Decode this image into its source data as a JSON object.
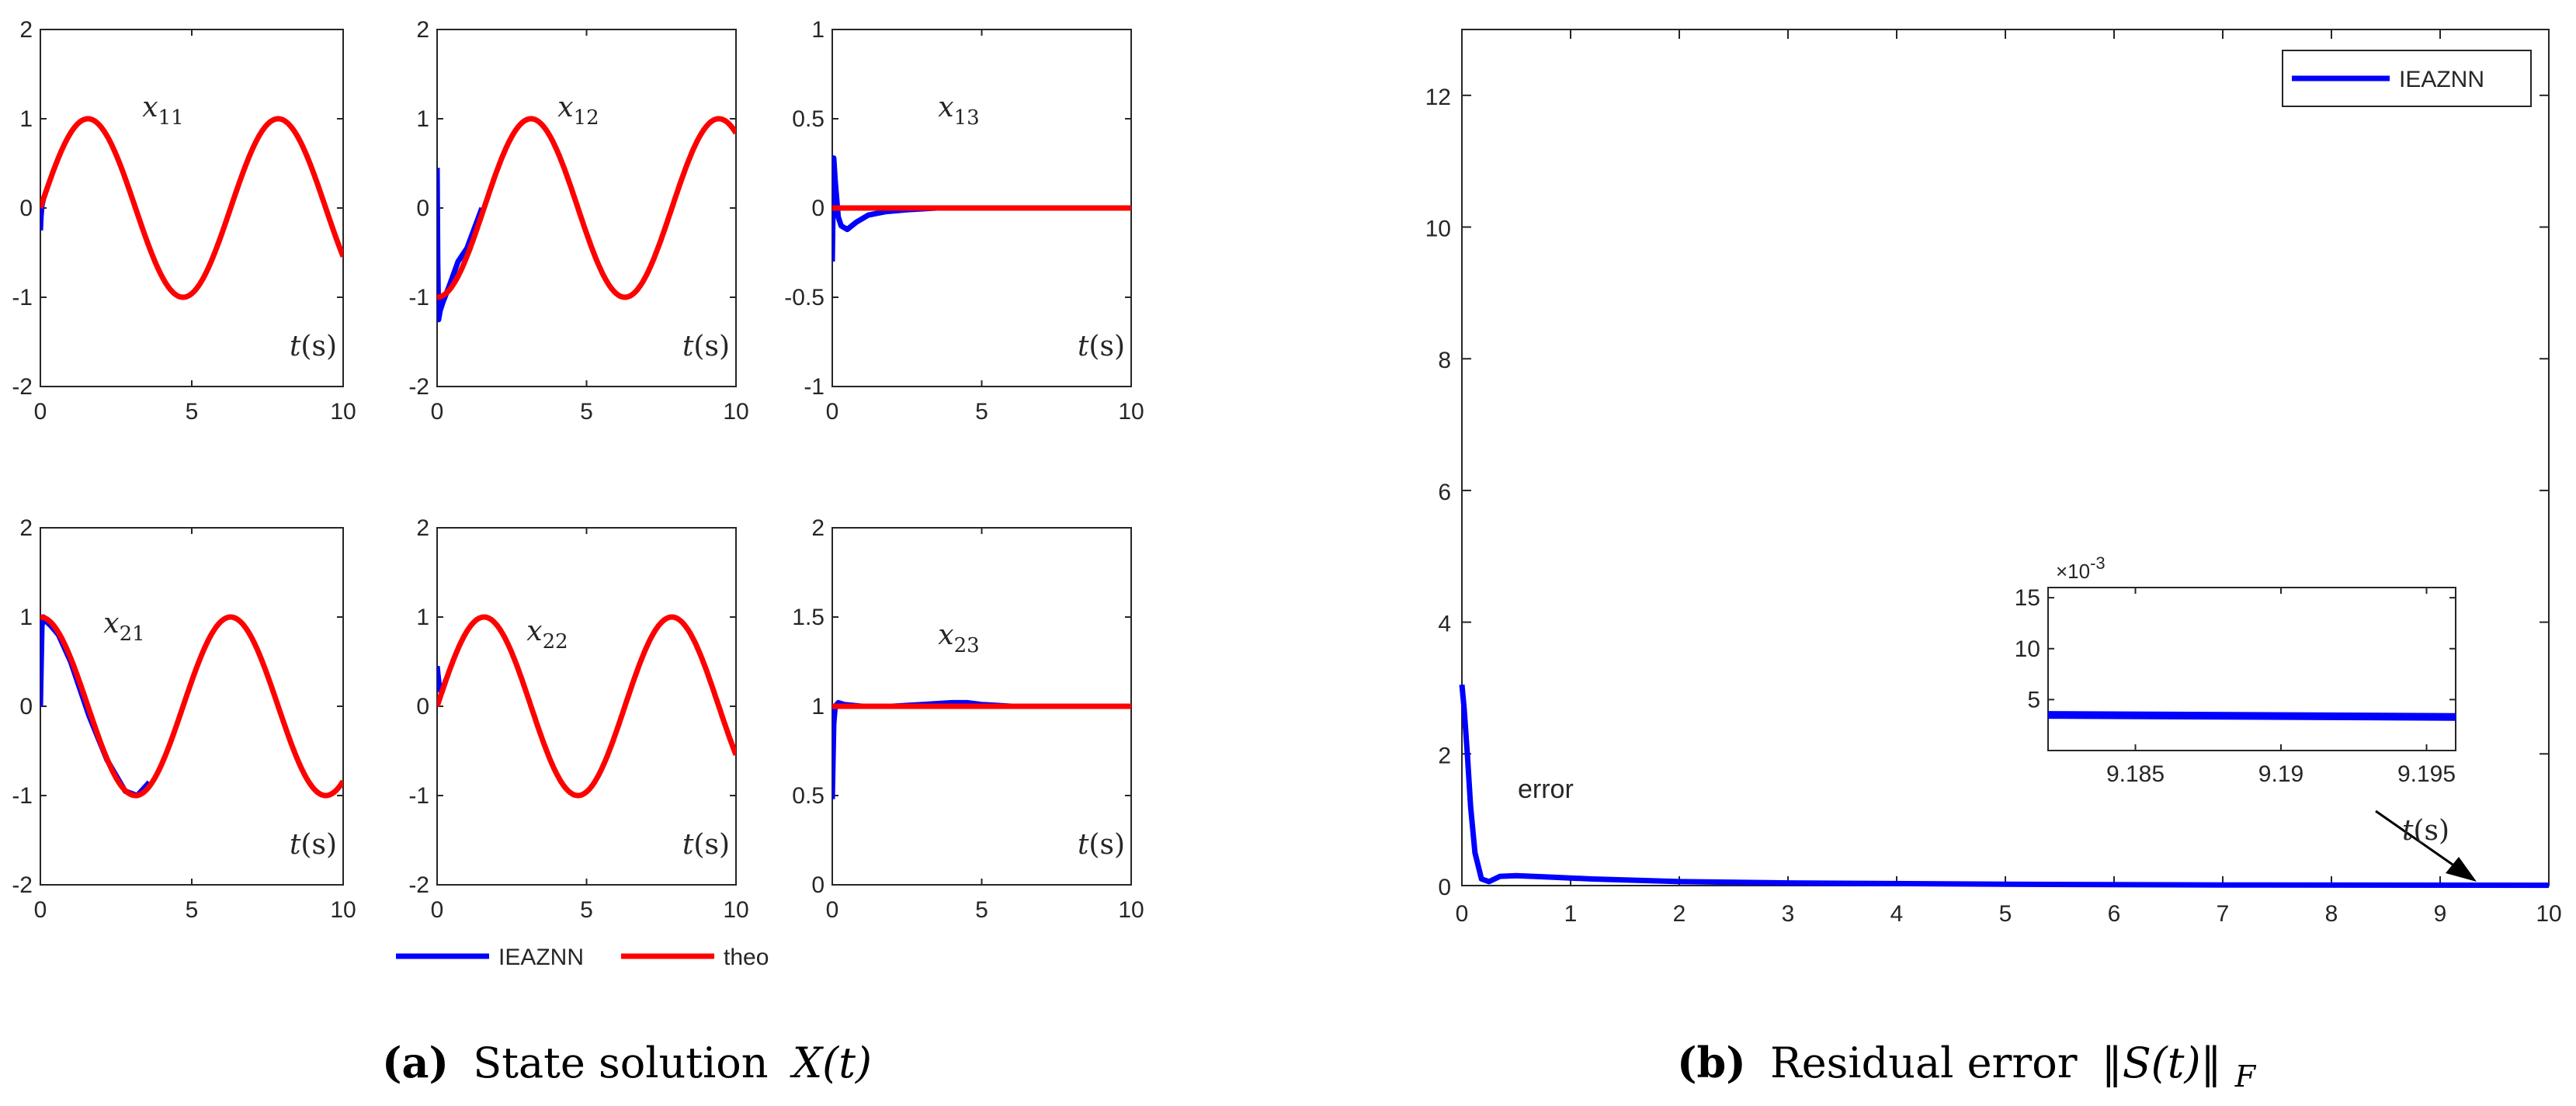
{
  "chart_data": [
    {
      "id": "x11",
      "type": "line",
      "label_main": "x",
      "label_sub": "11",
      "xlabel": "t(s)",
      "xlim": [
        0,
        10
      ],
      "ylim": [
        -2,
        2
      ],
      "xticks": [
        0,
        5,
        10
      ],
      "yticks": [
        -2,
        -1,
        0,
        1,
        2
      ],
      "ytick_labels": [
        "-2",
        "-1",
        "0",
        "1",
        "2"
      ],
      "series": [
        {
          "name": "IEAZNN",
          "x": [
            0,
            0.02,
            0.05,
            0.1
          ],
          "y": [
            -0.25,
            -0.1,
            0.03,
            0.1
          ]
        },
        {
          "name": "theo",
          "func": "sin",
          "x_range": [
            0,
            10
          ]
        }
      ]
    },
    {
      "id": "x12",
      "type": "line",
      "label_main": "x",
      "label_sub": "12",
      "xlabel": "t(s)",
      "xlim": [
        0,
        10
      ],
      "ylim": [
        -2,
        2
      ],
      "xticks": [
        0,
        5,
        10
      ],
      "yticks": [
        -2,
        -1,
        0,
        1,
        2
      ],
      "ytick_labels": [
        "-2",
        "-1",
        "0",
        "1",
        "2"
      ],
      "series": [
        {
          "name": "IEAZNN",
          "x": [
            0,
            0.02,
            0.05,
            0.1,
            0.2,
            0.4,
            0.7,
            1.0,
            1.5
          ],
          "y": [
            0.45,
            -0.6,
            -1.25,
            -1.15,
            -1.05,
            -0.88,
            -0.6,
            -0.45,
            0.0
          ]
        },
        {
          "name": "theo",
          "func": "-cos",
          "x_range": [
            0,
            10
          ]
        }
      ]
    },
    {
      "id": "x13",
      "type": "line",
      "label_main": "x",
      "label_sub": "13",
      "xlabel": "t(s)",
      "xlim": [
        0,
        10
      ],
      "ylim": [
        -1,
        1
      ],
      "xticks": [
        0,
        5,
        10
      ],
      "yticks": [
        -1,
        -0.5,
        0,
        0.5,
        1
      ],
      "ytick_labels": [
        "-1",
        "-0.5",
        "0",
        "0.5",
        "1"
      ],
      "series": [
        {
          "name": "IEAZNN",
          "x": [
            0,
            0.05,
            0.1,
            0.2,
            0.3,
            0.5,
            0.8,
            1.2,
            1.8,
            2.5,
            3.5
          ],
          "y": [
            -0.3,
            0.28,
            0.15,
            -0.05,
            -0.1,
            -0.12,
            -0.08,
            -0.04,
            -0.02,
            -0.01,
            0
          ]
        },
        {
          "name": "theo",
          "func": "zero",
          "x_range": [
            0,
            10
          ]
        }
      ]
    },
    {
      "id": "x21",
      "type": "line",
      "label_main": "x",
      "label_sub": "21",
      "xlabel": "t(s)",
      "xlim": [
        0,
        10
      ],
      "ylim": [
        -2,
        2
      ],
      "xticks": [
        0,
        5,
        10
      ],
      "yticks": [
        -2,
        -1,
        0,
        1,
        2
      ],
      "ytick_labels": [
        "-2",
        "-1",
        "0",
        "1",
        "2"
      ],
      "series": [
        {
          "name": "IEAZNN",
          "x": [
            0,
            0.05,
            0.1,
            0.2,
            0.35,
            0.6,
            1.0,
            1.6,
            2.2,
            2.8,
            3.2,
            3.6
          ],
          "y": [
            0,
            0.9,
            1.0,
            0.95,
            0.9,
            0.8,
            0.5,
            -0.1,
            -0.6,
            -0.95,
            -1.0,
            -0.85
          ]
        },
        {
          "name": "theo",
          "func": "cos",
          "x_range": [
            0,
            10
          ]
        }
      ]
    },
    {
      "id": "x22",
      "type": "line",
      "label_main": "x",
      "label_sub": "22",
      "xlabel": "t(s)",
      "xlim": [
        0,
        10
      ],
      "ylim": [
        -2,
        2
      ],
      "xticks": [
        0,
        5,
        10
      ],
      "yticks": [
        -2,
        -1,
        0,
        1,
        2
      ],
      "ytick_labels": [
        "-2",
        "-1",
        "0",
        "1",
        "2"
      ],
      "series": [
        {
          "name": "IEAZNN",
          "x": [
            0,
            0.03,
            0.08,
            0.15,
            0.3
          ],
          "y": [
            0.45,
            0.35,
            0.2,
            0.15,
            0.3
          ]
        },
        {
          "name": "theo",
          "func": "sin",
          "x_range": [
            0,
            10
          ]
        }
      ]
    },
    {
      "id": "x23",
      "type": "line",
      "label_main": "x",
      "label_sub": "23",
      "xlabel": "t(s)",
      "xlim": [
        0,
        10
      ],
      "ylim": [
        0,
        2
      ],
      "xticks": [
        0,
        5,
        10
      ],
      "yticks": [
        0,
        0.5,
        1,
        1.5,
        2
      ],
      "ytick_labels": [
        "0",
        "0.5",
        "1",
        "1.5",
        "2"
      ],
      "series": [
        {
          "name": "IEAZNN",
          "x": [
            0,
            0.05,
            0.1,
            0.2,
            0.4,
            1,
            2,
            3,
            4,
            4.5,
            5,
            6,
            10
          ],
          "y": [
            0.48,
            0.9,
            1.0,
            1.02,
            1.01,
            1.0,
            1.0,
            1.01,
            1.02,
            1.02,
            1.01,
            1.0,
            1.0
          ]
        },
        {
          "name": "theo",
          "func": "one",
          "x_range": [
            0,
            10
          ]
        }
      ]
    },
    {
      "id": "residual",
      "type": "line",
      "xlim": [
        0,
        10
      ],
      "ylim": [
        0,
        13
      ],
      "xticks": [
        0,
        1,
        2,
        3,
        4,
        5,
        6,
        7,
        8,
        9,
        10
      ],
      "yticks": [
        0,
        2,
        4,
        6,
        8,
        10,
        12
      ],
      "ytick_labels": [
        "0",
        "2",
        "4",
        "6",
        "8",
        "10",
        "12"
      ],
      "legend": "top-right",
      "series": [
        {
          "name": "IEAZNN",
          "x": [
            0,
            0.02,
            0.05,
            0.08,
            0.12,
            0.18,
            0.25,
            0.35,
            0.5,
            0.8,
            1.2,
            2,
            3,
            5,
            7,
            10
          ],
          "y": [
            3.05,
            2.7,
            2.0,
            1.2,
            0.5,
            0.1,
            0.06,
            0.14,
            0.15,
            0.13,
            0.1,
            0.06,
            0.04,
            0.02,
            0.01,
            0.005
          ]
        }
      ],
      "annotation": "error",
      "inset": {
        "xlim": [
          9.182,
          9.196
        ],
        "ylim": [
          0,
          0.016
        ],
        "xticks": [
          9.185,
          9.19,
          9.195
        ],
        "xtick_labels": [
          "9.185",
          "9.19",
          "9.195"
        ],
        "yticks": [
          0.005,
          0.01,
          0.015
        ],
        "ytick_labels": [
          "5",
          "10",
          "15"
        ],
        "exponent_label": "×10",
        "exponent_power": "-3",
        "xlabel": "t(s)",
        "series": [
          {
            "name": "IEAZNN",
            "x": [
              9.182,
              9.196
            ],
            "y": [
              0.0035,
              0.0033
            ]
          }
        ]
      }
    }
  ],
  "legend_left": {
    "items": [
      {
        "name": "IEAZNN",
        "color": "#0000ff"
      },
      {
        "name": "theo",
        "color": "#ff0000"
      }
    ]
  },
  "legend_right": {
    "items": [
      {
        "name": "IEAZNN",
        "color": "#0000ff"
      }
    ]
  },
  "captions": {
    "a": {
      "tag": "(a)",
      "text": "State solution",
      "math": "X(t)"
    },
    "b": {
      "tag": "(b)",
      "text": "Residual error",
      "math": "‖S(t)‖",
      "math_sub": "F"
    }
  },
  "colors": {
    "ieaznn": "#0000ff",
    "theo": "#ff0000",
    "axis": "#262626"
  }
}
